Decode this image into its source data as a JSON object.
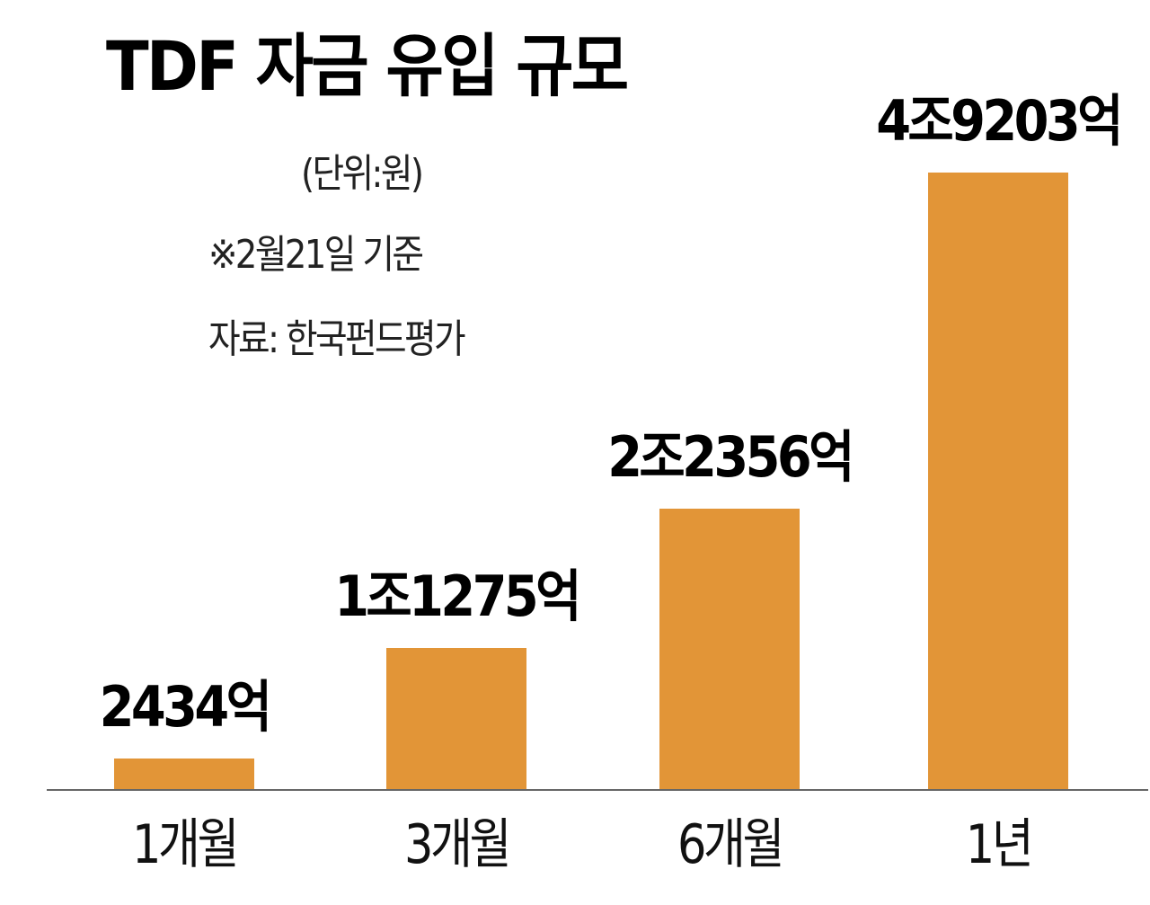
{
  "chart": {
    "title": "TDF 자금 유입 규모",
    "unit_note": "(단위:원)",
    "basis_note": "※2월21일 기준",
    "source_note": "자료: 한국펀드평가",
    "bar_color": "#E29537",
    "axis_color": "#666666"
  },
  "bars": [
    {
      "category": "1개월",
      "label": "2434억",
      "value": 2434
    },
    {
      "category": "3개월",
      "label": "1조1275억",
      "value": 11275
    },
    {
      "category": "6개월",
      "label": "2조2356억",
      "value": 22356
    },
    {
      "category": "1년",
      "label": "4조9203억",
      "value": 49203
    }
  ],
  "chart_data": {
    "type": "bar",
    "title": "TDF 자금 유입 규모",
    "subtitle": "(단위:원)",
    "annotations": [
      "※2월21일 기준",
      "자료: 한국펀드평가"
    ],
    "categories": [
      "1개월",
      "3개월",
      "6개월",
      "1년"
    ],
    "values": [
      2434,
      11275,
      22356,
      49203
    ],
    "value_unit": "억원",
    "data_labels": [
      "2434억",
      "1조1275억",
      "2조2356억",
      "4조9203억"
    ],
    "xlabel": "",
    "ylabel": "",
    "ylim": [
      0,
      50000
    ],
    "grid": false,
    "legend": null
  }
}
